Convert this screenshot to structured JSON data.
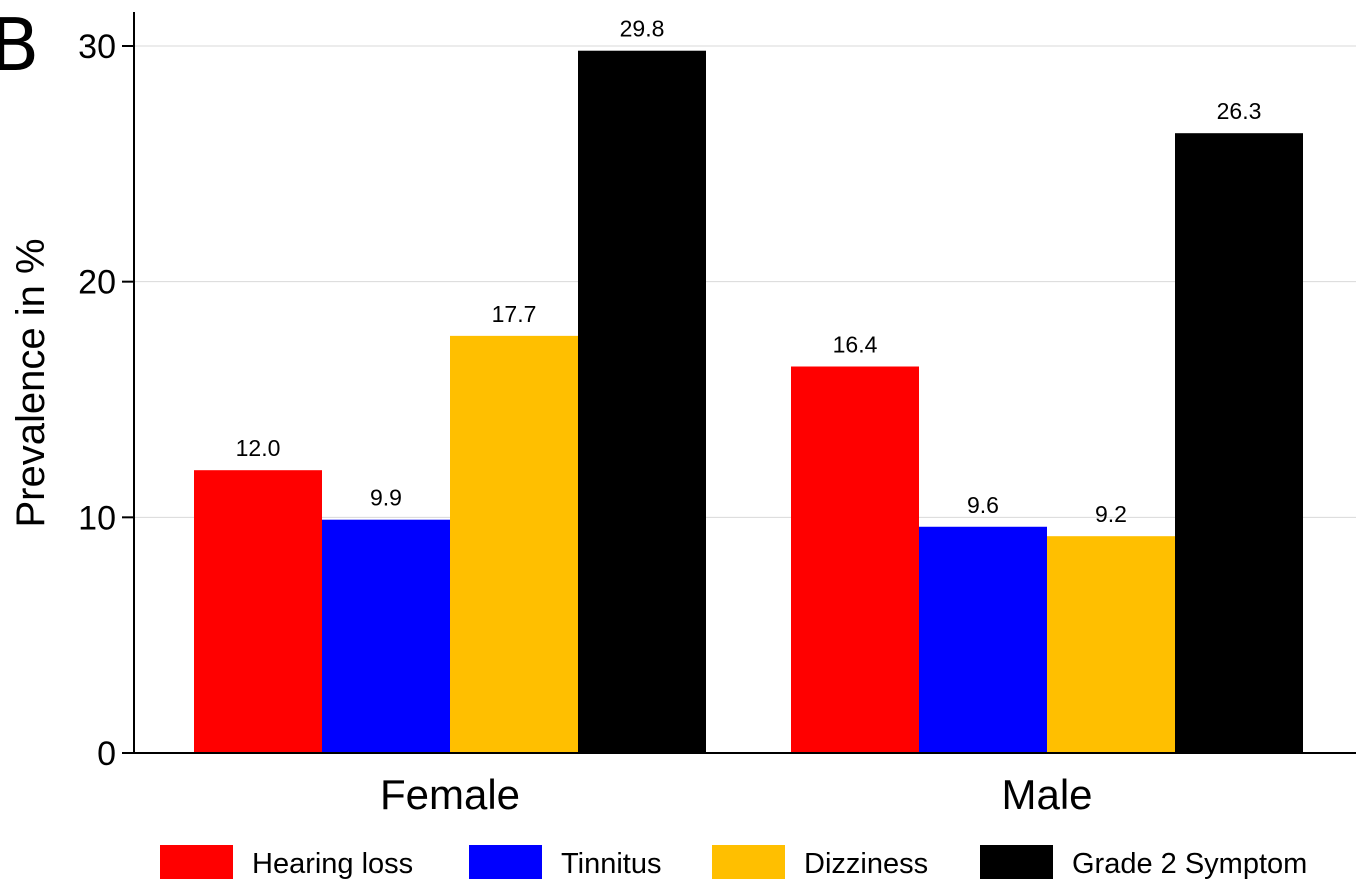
{
  "panel_label": "B",
  "chart_data": {
    "type": "bar",
    "categories": [
      "Female",
      "Male"
    ],
    "series": [
      {
        "name": "Hearing loss",
        "color": "#ff0000",
        "values": [
          12.0,
          16.4
        ],
        "labels": [
          "12.0",
          "16.4"
        ]
      },
      {
        "name": "Tinnitus",
        "color": "#0000ff",
        "values": [
          9.9,
          9.6
        ],
        "labels": [
          "9.9",
          "9.6"
        ]
      },
      {
        "name": "Dizziness",
        "color": "#ffbf00",
        "values": [
          17.7,
          9.2
        ],
        "labels": [
          "17.7",
          "9.2"
        ]
      },
      {
        "name": "Grade 2 Symptom",
        "color": "#000000",
        "values": [
          29.8,
          26.3
        ],
        "labels": [
          "29.8",
          "26.3"
        ]
      }
    ],
    "ylabel": "Prevalence in %",
    "xlabel": "",
    "ylim": [
      0,
      30
    ],
    "yticks": [
      0,
      10,
      20,
      30
    ],
    "ytick_labels": [
      "0",
      "10",
      "20",
      "30"
    ],
    "grid": "horizontal",
    "legend_position": "bottom"
  }
}
